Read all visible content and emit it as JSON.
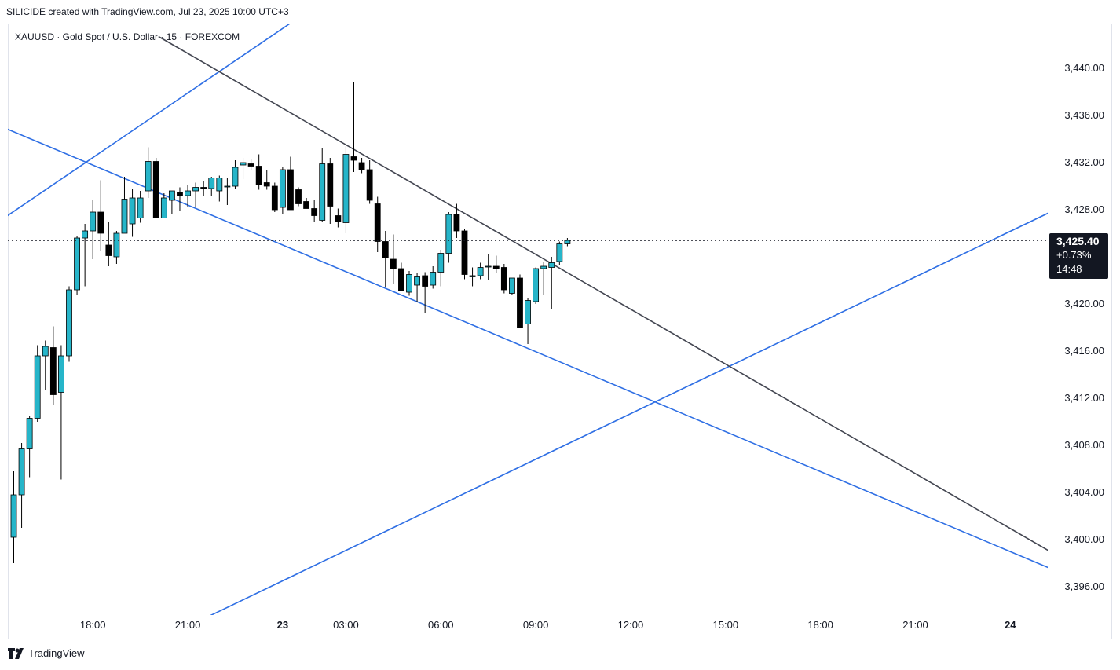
{
  "header": {
    "attribution": "SILICIDE created with TradingView.com, Jul 23, 2025 10:00 UTC+3",
    "symbol_line": "XAUUSD · Gold Spot / U.S. Dollar · 15 · FOREXCOM"
  },
  "footer": {
    "brand": "TradingView"
  },
  "last_price": {
    "price": "3,425.40",
    "change": "+0.73%",
    "countdown": "14:48",
    "value": 3425.4
  },
  "colors": {
    "up": "#26b5c9",
    "down": "#000000",
    "trend_blue": "#2f6fe4",
    "trend_gray": "#434651"
  },
  "chart_data": {
    "type": "candlestick",
    "title": "XAUUSD · Gold Spot / U.S. Dollar · 15 · FOREXCOM",
    "y_ticks": [
      3396,
      3400,
      3404,
      3408,
      3412,
      3416,
      3420,
      3428,
      3432,
      3436,
      3440
    ],
    "y_tick_labels": [
      "3,396.00",
      "3,400.00",
      "3,404.00",
      "3,408.00",
      "3,412.00",
      "3,416.00",
      "3,420.00",
      "3,428.00",
      "3,432.00",
      "3,436.00",
      "3,440.00"
    ],
    "x_tick_labels": [
      {
        "label": "18:00",
        "bar": 10,
        "bold": false
      },
      {
        "label": "21:00",
        "bar": 22,
        "bold": false
      },
      {
        "label": "23",
        "bar": 34,
        "bold": true
      },
      {
        "label": "03:00",
        "bar": 42,
        "bold": false
      },
      {
        "label": "06:00",
        "bar": 54,
        "bold": false
      },
      {
        "label": "09:00",
        "bar": 66,
        "bold": false
      },
      {
        "label": "12:00",
        "bar": 78,
        "bold": false
      },
      {
        "label": "15:00",
        "bar": 90,
        "bold": false
      },
      {
        "label": "18:00",
        "bar": 102,
        "bold": false
      },
      {
        "label": "21:00",
        "bar": 114,
        "bold": false
      },
      {
        "label": "24",
        "bar": 126,
        "bold": true
      }
    ],
    "candles": [
      {
        "o": 3400.2,
        "h": 3405.8,
        "l": 3398.0,
        "c": 3403.8
      },
      {
        "o": 3403.8,
        "h": 3408.2,
        "l": 3401.0,
        "c": 3407.7
      },
      {
        "o": 3407.7,
        "h": 3410.5,
        "l": 3405.3,
        "c": 3410.3
      },
      {
        "o": 3410.3,
        "h": 3416.5,
        "l": 3410.0,
        "c": 3415.6
      },
      {
        "o": 3415.6,
        "h": 3416.9,
        "l": 3412.7,
        "c": 3416.4
      },
      {
        "o": 3416.3,
        "h": 3418.1,
        "l": 3411.4,
        "c": 3412.3
      },
      {
        "o": 3412.5,
        "h": 3416.5,
        "l": 3405.1,
        "c": 3415.6
      },
      {
        "o": 3415.6,
        "h": 3421.5,
        "l": 3415.1,
        "c": 3421.2
      },
      {
        "o": 3421.2,
        "h": 3425.8,
        "l": 3420.8,
        "c": 3425.6
      },
      {
        "o": 3425.6,
        "h": 3426.8,
        "l": 3421.5,
        "c": 3426.2
      },
      {
        "o": 3426.2,
        "h": 3428.8,
        "l": 3423.8,
        "c": 3427.8
      },
      {
        "o": 3427.8,
        "h": 3430.5,
        "l": 3424.5,
        "c": 3426.0
      },
      {
        "o": 3425.0,
        "h": 3427.0,
        "l": 3423.2,
        "c": 3424.1
      },
      {
        "o": 3424.0,
        "h": 3426.2,
        "l": 3423.4,
        "c": 3426.0
      },
      {
        "o": 3426.0,
        "h": 3430.8,
        "l": 3426.0,
        "c": 3428.9
      },
      {
        "o": 3426.8,
        "h": 3429.8,
        "l": 3425.7,
        "c": 3429.0
      },
      {
        "o": 3427.3,
        "h": 3429.6,
        "l": 3426.9,
        "c": 3429.0
      },
      {
        "o": 3429.6,
        "h": 3433.3,
        "l": 3429.0,
        "c": 3432.1
      },
      {
        "o": 3432.1,
        "h": 3432.4,
        "l": 3427.3,
        "c": 3427.3
      },
      {
        "o": 3427.3,
        "h": 3429.4,
        "l": 3427.3,
        "c": 3429.0
      },
      {
        "o": 3428.8,
        "h": 3429.6,
        "l": 3427.6,
        "c": 3429.6
      },
      {
        "o": 3429.5,
        "h": 3429.9,
        "l": 3427.9,
        "c": 3429.2
      },
      {
        "o": 3429.2,
        "h": 3430.1,
        "l": 3428.2,
        "c": 3429.6
      },
      {
        "o": 3429.6,
        "h": 3430.3,
        "l": 3428.2,
        "c": 3429.9
      },
      {
        "o": 3429.9,
        "h": 3430.4,
        "l": 3429.2,
        "c": 3429.8
      },
      {
        "o": 3429.8,
        "h": 3430.8,
        "l": 3429.2,
        "c": 3430.7
      },
      {
        "o": 3429.6,
        "h": 3430.9,
        "l": 3428.7,
        "c": 3430.7
      },
      {
        "o": 3430.0,
        "h": 3430.7,
        "l": 3428.4,
        "c": 3430.0
      },
      {
        "o": 3430.0,
        "h": 3432.2,
        "l": 3429.8,
        "c": 3431.6
      },
      {
        "o": 3431.8,
        "h": 3432.4,
        "l": 3430.6,
        "c": 3432.0
      },
      {
        "o": 3431.9,
        "h": 3432.3,
        "l": 3431.4,
        "c": 3431.7
      },
      {
        "o": 3431.7,
        "h": 3432.7,
        "l": 3429.7,
        "c": 3430.1
      },
      {
        "o": 3430.3,
        "h": 3431.4,
        "l": 3429.7,
        "c": 3430.0
      },
      {
        "o": 3430.0,
        "h": 3430.3,
        "l": 3427.8,
        "c": 3428.0
      },
      {
        "o": 3428.2,
        "h": 3431.6,
        "l": 3427.6,
        "c": 3431.4
      },
      {
        "o": 3431.4,
        "h": 3432.5,
        "l": 3428.0,
        "c": 3428.0
      },
      {
        "o": 3429.7,
        "h": 3429.9,
        "l": 3428.3,
        "c": 3428.5
      },
      {
        "o": 3428.7,
        "h": 3429.0,
        "l": 3428.1,
        "c": 3428.1
      },
      {
        "o": 3428.1,
        "h": 3428.8,
        "l": 3427.0,
        "c": 3427.5
      },
      {
        "o": 3427.1,
        "h": 3433.2,
        "l": 3427.0,
        "c": 3431.9
      },
      {
        "o": 3431.9,
        "h": 3432.4,
        "l": 3426.8,
        "c": 3428.3
      },
      {
        "o": 3427.5,
        "h": 3428.1,
        "l": 3426.5,
        "c": 3427.0
      },
      {
        "o": 3426.9,
        "h": 3433.4,
        "l": 3426.0,
        "c": 3432.7
      },
      {
        "o": 3432.5,
        "h": 3438.8,
        "l": 3431.2,
        "c": 3432.2
      },
      {
        "o": 3432.0,
        "h": 3432.4,
        "l": 3431.1,
        "c": 3431.4
      },
      {
        "o": 3431.4,
        "h": 3432.2,
        "l": 3428.5,
        "c": 3428.8
      },
      {
        "o": 3428.5,
        "h": 3429.1,
        "l": 3424.4,
        "c": 3425.3
      },
      {
        "o": 3425.3,
        "h": 3426.2,
        "l": 3421.4,
        "c": 3423.9
      },
      {
        "o": 3423.8,
        "h": 3425.9,
        "l": 3421.7,
        "c": 3423.0
      },
      {
        "o": 3423.0,
        "h": 3423.5,
        "l": 3421.2,
        "c": 3421.1
      },
      {
        "o": 3421.0,
        "h": 3422.8,
        "l": 3420.7,
        "c": 3422.5
      },
      {
        "o": 3421.6,
        "h": 3422.6,
        "l": 3420.2,
        "c": 3422.3
      },
      {
        "o": 3422.4,
        "h": 3422.7,
        "l": 3419.2,
        "c": 3421.5
      },
      {
        "o": 3421.6,
        "h": 3423.2,
        "l": 3421.3,
        "c": 3422.7
      },
      {
        "o": 3422.7,
        "h": 3424.6,
        "l": 3421.5,
        "c": 3424.3
      },
      {
        "o": 3424.3,
        "h": 3427.8,
        "l": 3423.5,
        "c": 3427.6
      },
      {
        "o": 3427.6,
        "h": 3428.5,
        "l": 3425.6,
        "c": 3426.2
      },
      {
        "o": 3426.2,
        "h": 3426.4,
        "l": 3422.1,
        "c": 3422.5
      },
      {
        "o": 3422.3,
        "h": 3423.1,
        "l": 3421.5,
        "c": 3422.4
      },
      {
        "o": 3422.4,
        "h": 3423.5,
        "l": 3422.1,
        "c": 3423.1
      },
      {
        "o": 3423.2,
        "h": 3424.2,
        "l": 3422.0,
        "c": 3423.2
      },
      {
        "o": 3423.2,
        "h": 3424.1,
        "l": 3422.6,
        "c": 3423.0
      },
      {
        "o": 3423.1,
        "h": 3423.4,
        "l": 3420.9,
        "c": 3421.2
      },
      {
        "o": 3420.9,
        "h": 3422.1,
        "l": 3420.8,
        "c": 3422.2
      },
      {
        "o": 3422.2,
        "h": 3422.5,
        "l": 3418.0,
        "c": 3418.0
      },
      {
        "o": 3418.3,
        "h": 3420.5,
        "l": 3416.6,
        "c": 3420.3
      },
      {
        "o": 3420.2,
        "h": 3423.1,
        "l": 3420.0,
        "c": 3423.0
      },
      {
        "o": 3423.0,
        "h": 3423.6,
        "l": 3420.8,
        "c": 3423.2
      },
      {
        "o": 3423.1,
        "h": 3424.0,
        "l": 3419.6,
        "c": 3423.5
      },
      {
        "o": 3423.6,
        "h": 3425.3,
        "l": 3423.3,
        "c": 3425.1
      },
      {
        "o": 3425.1,
        "h": 3425.6,
        "l": 3424.9,
        "c": 3425.4
      }
    ],
    "trendlines": [
      {
        "color": "blue",
        "points": [
          [
            -1,
            3427.4
          ],
          [
            41.7,
            3446.9
          ]
        ]
      },
      {
        "color": "blue",
        "points": [
          [
            -1,
            3434.9
          ],
          [
            132.3,
            3397.2
          ]
        ]
      },
      {
        "color": "blue",
        "points": [
          [
            16,
            3390.7
          ],
          [
            132.3,
            3428.2
          ]
        ]
      },
      {
        "color": "gray",
        "points": [
          [
            18.3,
            3442.7
          ],
          [
            132.3,
            3398.5
          ]
        ]
      }
    ]
  }
}
